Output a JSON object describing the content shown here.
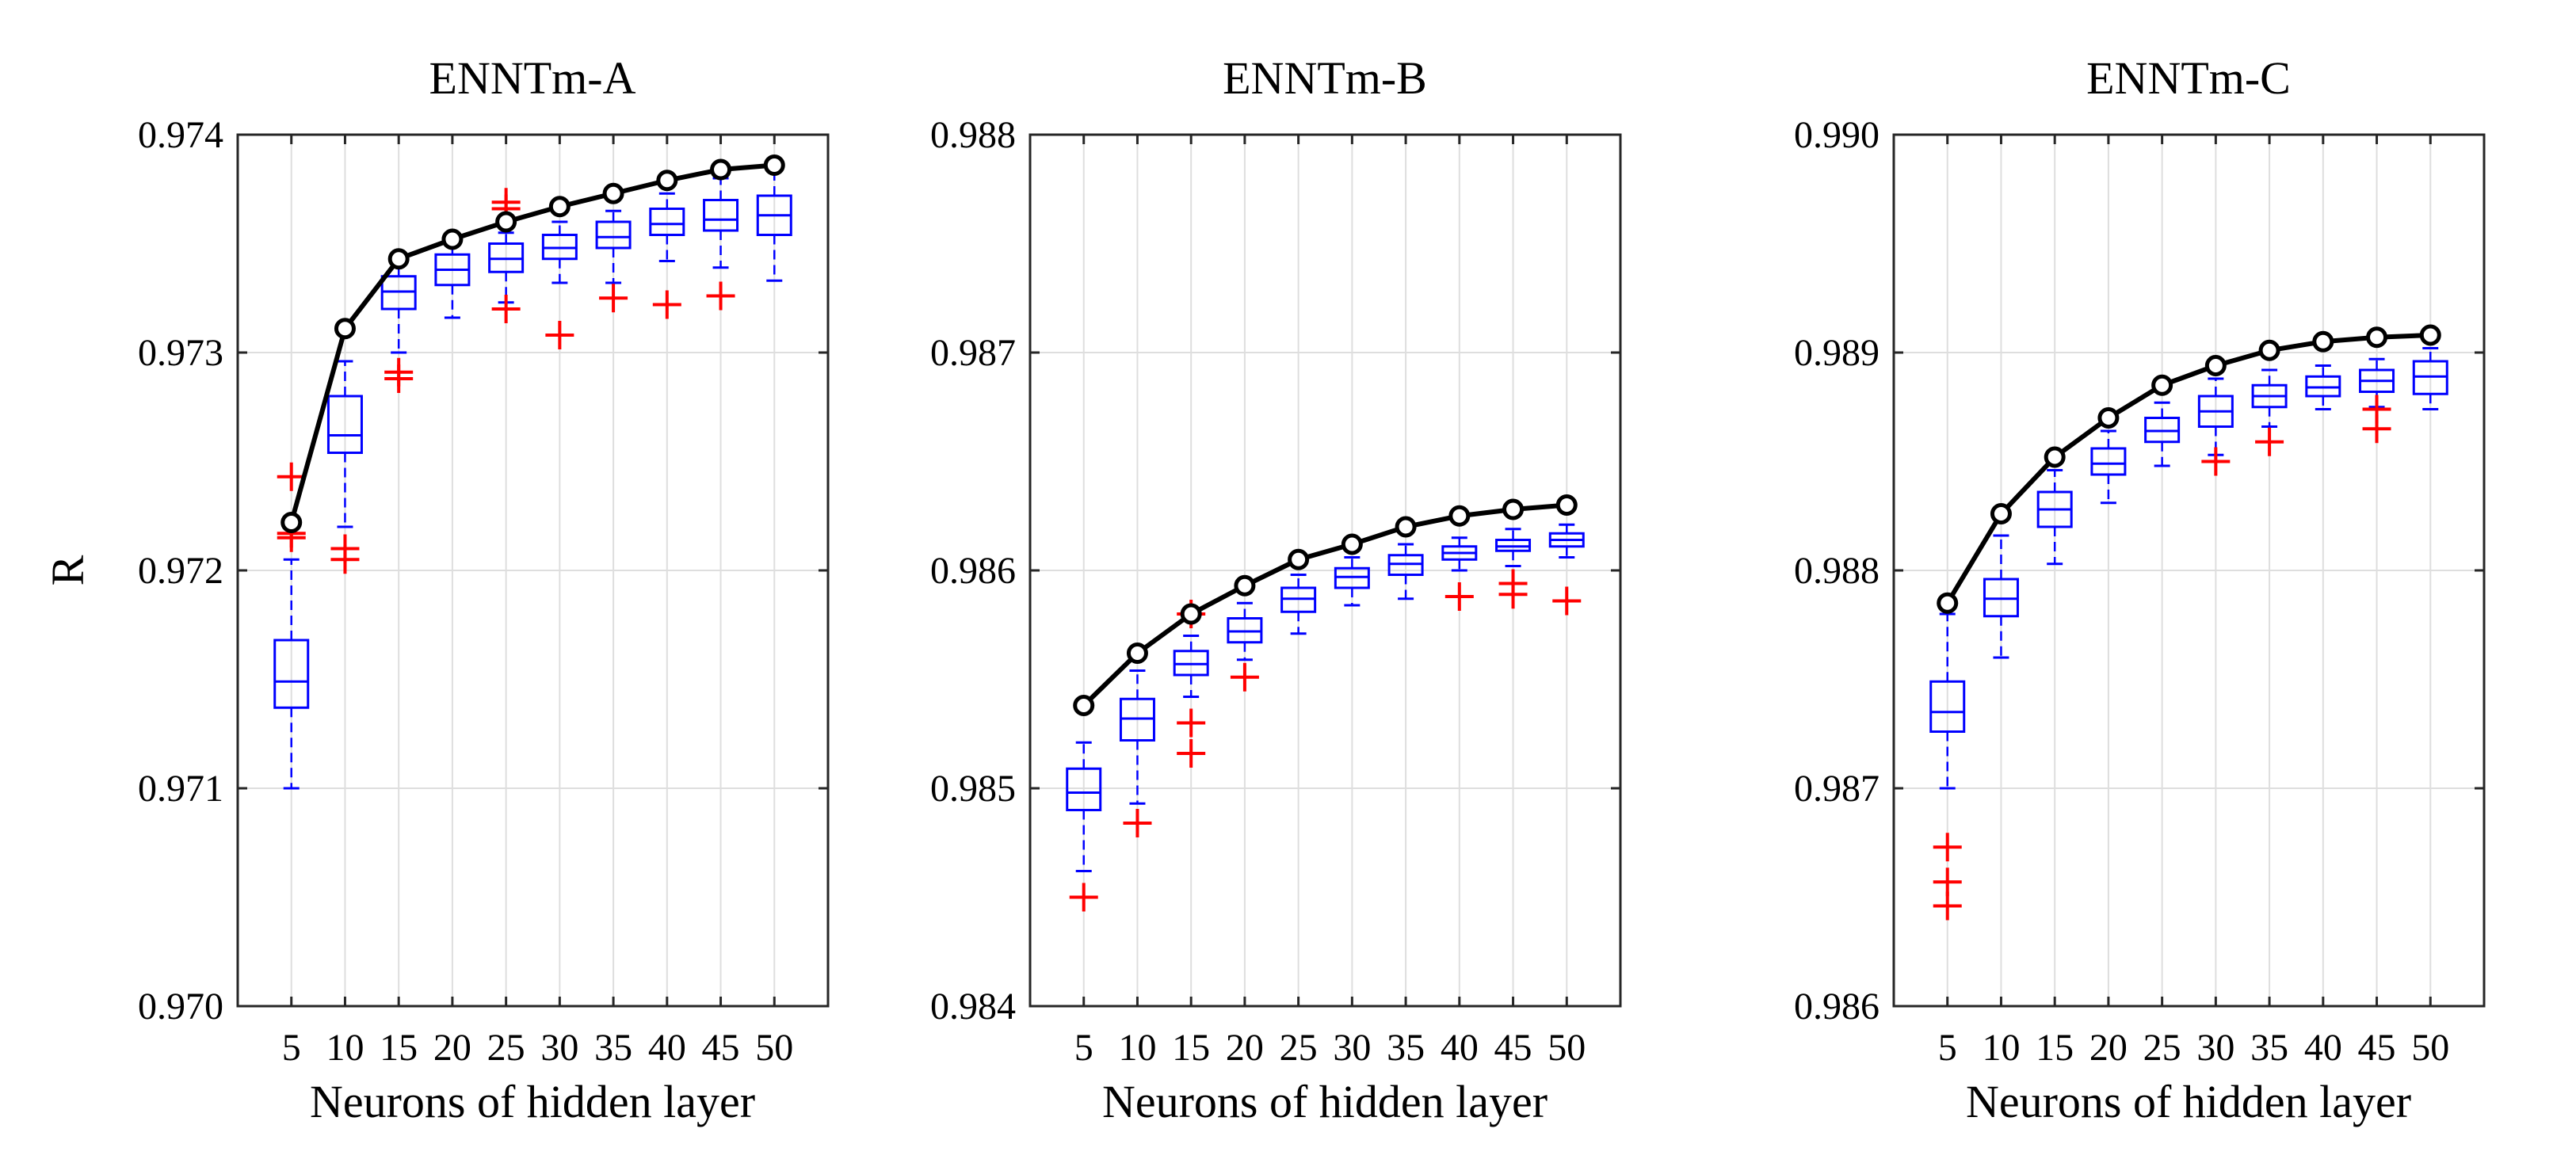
{
  "chart_data": [
    {
      "type": "boxplot_with_line",
      "title": "ENNTm-A",
      "xlabel": "Neurons of hidden layer",
      "ylabel": "R",
      "categories": [
        "5",
        "10",
        "15",
        "20",
        "25",
        "30",
        "35",
        "40",
        "45",
        "50"
      ],
      "ylim": [
        0.97,
        0.974
      ],
      "yticks": [
        "0.970",
        "0.971",
        "0.972",
        "0.973",
        "0.974"
      ],
      "grid": true,
      "max_line": [
        0.97222,
        0.97311,
        0.97343,
        0.97352,
        0.9736,
        0.97367,
        0.97373,
        0.97379,
        0.97384,
        0.97386
      ],
      "boxes": [
        {
          "q1": 0.97137,
          "median": 0.97149,
          "q3": 0.97168,
          "lower": 0.971,
          "upper": 0.97205,
          "outliers": [
            0.97215,
            0.97217,
            0.97243
          ]
        },
        {
          "q1": 0.97254,
          "median": 0.97262,
          "q3": 0.9728,
          "lower": 0.9722,
          "upper": 0.97296,
          "outliers": [
            0.97205,
            0.9721
          ]
        },
        {
          "q1": 0.9732,
          "median": 0.97328,
          "q3": 0.97335,
          "lower": 0.973,
          "upper": 0.97341,
          "outliers": [
            0.97288,
            0.97291
          ]
        },
        {
          "q1": 0.97331,
          "median": 0.97338,
          "q3": 0.97345,
          "lower": 0.97316,
          "upper": 0.97351,
          "outliers": []
        },
        {
          "q1": 0.97337,
          "median": 0.97343,
          "q3": 0.9735,
          "lower": 0.97323,
          "upper": 0.97355,
          "outliers": [
            0.9732,
            0.97366,
            0.97369
          ]
        },
        {
          "q1": 0.97343,
          "median": 0.97348,
          "q3": 0.97354,
          "lower": 0.97332,
          "upper": 0.9736,
          "outliers": [
            0.97308
          ]
        },
        {
          "q1": 0.97348,
          "median": 0.97353,
          "q3": 0.9736,
          "lower": 0.97332,
          "upper": 0.97365,
          "outliers": [
            0.97325
          ]
        },
        {
          "q1": 0.97354,
          "median": 0.97359,
          "q3": 0.97366,
          "lower": 0.97342,
          "upper": 0.97373,
          "outliers": [
            0.97322
          ]
        },
        {
          "q1": 0.97356,
          "median": 0.97361,
          "q3": 0.9737,
          "lower": 0.97339,
          "upper": 0.9738,
          "outliers": [
            0.97326
          ]
        },
        {
          "q1": 0.97354,
          "median": 0.97363,
          "q3": 0.97372,
          "lower": 0.97333,
          "upper": 0.97384,
          "outliers": []
        }
      ]
    },
    {
      "type": "boxplot_with_line",
      "title": "ENNTm-B",
      "xlabel": "Neurons of hidden layer",
      "ylabel": "",
      "categories": [
        "5",
        "10",
        "15",
        "20",
        "25",
        "30",
        "35",
        "40",
        "45",
        "50"
      ],
      "ylim": [
        0.984,
        0.988
      ],
      "yticks": [
        "0.984",
        "0.985",
        "0.986",
        "0.987",
        "0.988"
      ],
      "grid": true,
      "max_line": [
        0.98538,
        0.98562,
        0.9858,
        0.98593,
        0.98605,
        0.98612,
        0.9862,
        0.98625,
        0.98628,
        0.9863
      ],
      "boxes": [
        {
          "q1": 0.9849,
          "median": 0.98498,
          "q3": 0.98509,
          "lower": 0.98462,
          "upper": 0.98521,
          "outliers": [
            0.9845
          ]
        },
        {
          "q1": 0.98522,
          "median": 0.98532,
          "q3": 0.98541,
          "lower": 0.98493,
          "upper": 0.98554,
          "outliers": [
            0.98484
          ]
        },
        {
          "q1": 0.98552,
          "median": 0.98557,
          "q3": 0.98563,
          "lower": 0.98542,
          "upper": 0.9857,
          "outliers": [
            0.98516,
            0.9853,
            0.9858
          ]
        },
        {
          "q1": 0.98567,
          "median": 0.98572,
          "q3": 0.98578,
          "lower": 0.98559,
          "upper": 0.98585,
          "outliers": [
            0.98551
          ]
        },
        {
          "q1": 0.98581,
          "median": 0.98587,
          "q3": 0.98592,
          "lower": 0.98571,
          "upper": 0.98598,
          "outliers": []
        },
        {
          "q1": 0.98592,
          "median": 0.98597,
          "q3": 0.98601,
          "lower": 0.98584,
          "upper": 0.98606,
          "outliers": []
        },
        {
          "q1": 0.98598,
          "median": 0.98603,
          "q3": 0.98607,
          "lower": 0.98587,
          "upper": 0.98612,
          "outliers": []
        },
        {
          "q1": 0.98605,
          "median": 0.98608,
          "q3": 0.98611,
          "lower": 0.986,
          "upper": 0.98615,
          "outliers": [
            0.98588
          ]
        },
        {
          "q1": 0.98609,
          "median": 0.98611,
          "q3": 0.98614,
          "lower": 0.98602,
          "upper": 0.98619,
          "outliers": [
            0.98589,
            0.98594
          ]
        },
        {
          "q1": 0.98611,
          "median": 0.98614,
          "q3": 0.98617,
          "lower": 0.98606,
          "upper": 0.98621,
          "outliers": [
            0.98586
          ]
        }
      ]
    },
    {
      "type": "boxplot_with_line",
      "title": "ENNTm-C",
      "xlabel": "Neurons of hidden layer",
      "ylabel": "",
      "categories": [
        "5",
        "10",
        "15",
        "20",
        "25",
        "30",
        "35",
        "40",
        "45",
        "50"
      ],
      "ylim": [
        0.986,
        0.99
      ],
      "yticks": [
        "0.986",
        "0.987",
        "0.988",
        "0.989",
        "0.990"
      ],
      "grid": true,
      "max_line": [
        0.98785,
        0.98826,
        0.98852,
        0.9887,
        0.98885,
        0.98894,
        0.98901,
        0.98905,
        0.98907,
        0.98908
      ],
      "boxes": [
        {
          "q1": 0.98726,
          "median": 0.98735,
          "q3": 0.98749,
          "lower": 0.987,
          "upper": 0.9878,
          "outliers": [
            0.98646,
            0.98657,
            0.98673
          ]
        },
        {
          "q1": 0.98779,
          "median": 0.98787,
          "q3": 0.98796,
          "lower": 0.9876,
          "upper": 0.98816,
          "outliers": []
        },
        {
          "q1": 0.9882,
          "median": 0.98828,
          "q3": 0.98836,
          "lower": 0.98803,
          "upper": 0.98846,
          "outliers": []
        },
        {
          "q1": 0.98844,
          "median": 0.98849,
          "q3": 0.98856,
          "lower": 0.98831,
          "upper": 0.98864,
          "outliers": []
        },
        {
          "q1": 0.98859,
          "median": 0.98864,
          "q3": 0.9887,
          "lower": 0.98848,
          "upper": 0.98877,
          "outliers": []
        },
        {
          "q1": 0.98866,
          "median": 0.98873,
          "q3": 0.9888,
          "lower": 0.98853,
          "upper": 0.98888,
          "outliers": [
            0.9885
          ]
        },
        {
          "q1": 0.98875,
          "median": 0.9888,
          "q3": 0.98885,
          "lower": 0.98866,
          "upper": 0.98892,
          "outliers": [
            0.98859
          ]
        },
        {
          "q1": 0.9888,
          "median": 0.98884,
          "q3": 0.98889,
          "lower": 0.98874,
          "upper": 0.98894,
          "outliers": []
        },
        {
          "q1": 0.98882,
          "median": 0.98887,
          "q3": 0.98892,
          "lower": 0.98875,
          "upper": 0.98897,
          "outliers": [
            0.98865,
            0.98874
          ]
        },
        {
          "q1": 0.98881,
          "median": 0.98889,
          "q3": 0.98896,
          "lower": 0.98874,
          "upper": 0.98902,
          "outliers": []
        }
      ]
    }
  ]
}
